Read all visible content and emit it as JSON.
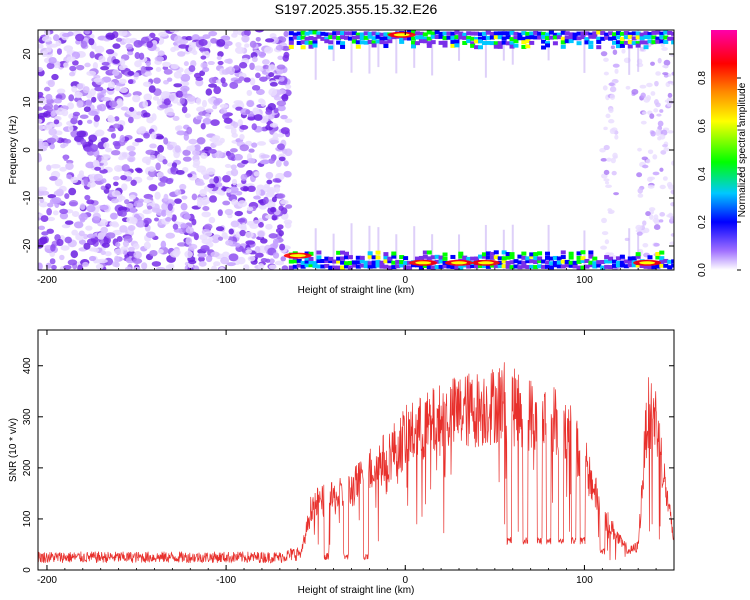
{
  "title": "S197.2025.355.15.32.E26",
  "chart_data": [
    {
      "type": "heatmap",
      "xlabel": "Height of straight line (km)",
      "ylabel": "Frequency (Hz)",
      "xlim": [
        -205,
        150
      ],
      "ylim": [
        -25,
        25
      ],
      "xticks": [
        -200,
        -100,
        0,
        100
      ],
      "yticks": [
        -20,
        -10,
        0,
        10,
        20
      ],
      "colorbar": {
        "label": "Normalized spectral amplitude",
        "range": [
          0,
          1
        ],
        "ticks": [
          "0.0",
          "0.2",
          "0.4",
          "0.6",
          "0.8"
        ],
        "stops": [
          "#ffffff",
          "#8a2be2",
          "#0000ff",
          "#00c8ff",
          "#00ff00",
          "#ffff00",
          "#ff8c00",
          "#ff0000",
          "#ff00aa"
        ]
      },
      "description_regions": {
        "noise_x_range": [
          -205,
          -65
        ],
        "edge_bands_x_range": [
          -65,
          150
        ],
        "right_noise_x_range": [
          110,
          150
        ]
      }
    },
    {
      "type": "line",
      "xlabel": "Height of straight line (km)",
      "ylabel": "SNR (10 * v/v)",
      "xlim": [
        -205,
        150
      ],
      "ylim": [
        0,
        470
      ],
      "xticks": [
        -200,
        -100,
        0,
        100
      ],
      "yticks": [
        0,
        100,
        200,
        300,
        400
      ],
      "color": "#e8302c",
      "envelope_x": [
        -205,
        -150,
        -100,
        -70,
        -58,
        -52,
        -40,
        -30,
        -20,
        -10,
        0,
        10,
        20,
        30,
        40,
        50,
        55,
        60,
        70,
        80,
        90,
        100,
        110,
        120,
        125,
        130,
        135,
        140,
        145,
        150
      ],
      "envelope_y": [
        25,
        25,
        25,
        25,
        35,
        140,
        150,
        170,
        210,
        240,
        280,
        300,
        320,
        335,
        340,
        350,
        360,
        345,
        330,
        320,
        300,
        230,
        120,
        60,
        40,
        50,
        330,
        320,
        180,
        60
      ],
      "dips": [
        {
          "x": -44,
          "y": 20
        },
        {
          "x": -33,
          "y": 20
        },
        {
          "x": -22,
          "y": 20
        },
        {
          "x": 58,
          "y": 50
        },
        {
          "x": 67,
          "y": 50
        },
        {
          "x": 75,
          "y": 50
        },
        {
          "x": 80,
          "y": 50
        },
        {
          "x": 87,
          "y": 50
        },
        {
          "x": 94,
          "y": 50
        },
        {
          "x": 99,
          "y": 50
        },
        {
          "x": 110,
          "y": 30
        }
      ]
    }
  ]
}
